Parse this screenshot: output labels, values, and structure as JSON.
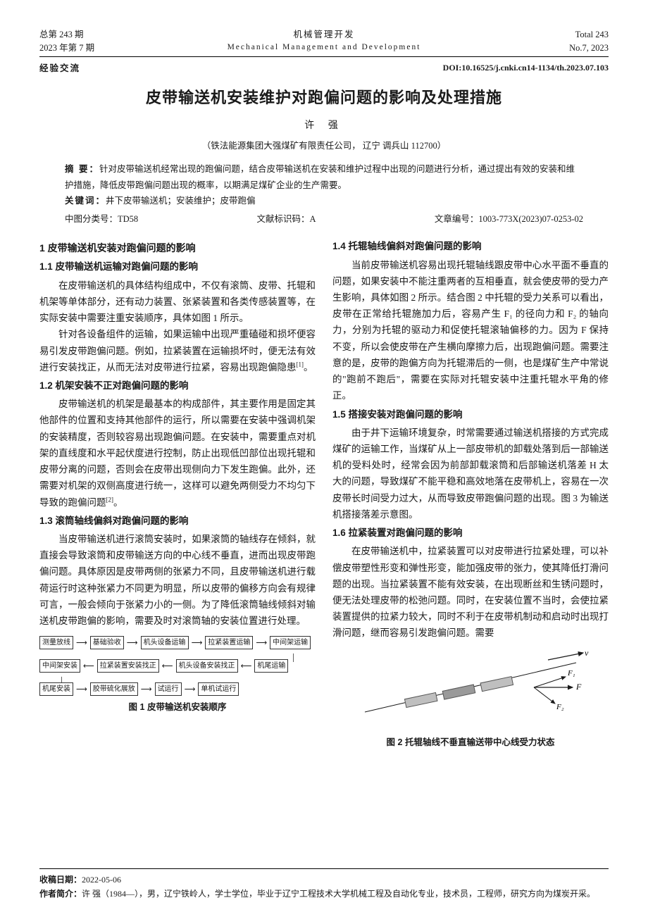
{
  "header": {
    "issue_total_cn": "总第 243 期",
    "issue_date_cn": "2023 年第 7 期",
    "journal_cn": "机械管理开发",
    "journal_en": "Mechanical Management and Development",
    "issue_total_en": "Total 243",
    "issue_date_en": "No.7, 2023"
  },
  "category": "经验交流",
  "doi": "DOI:10.16525/j.cnki.cn14-1134/th.2023.07.103",
  "title": "皮带输送机安装维护对跑偏问题的影响及处理措施",
  "author": "许 强",
  "affiliation": "（铁法能源集团大强煤矿有限责任公司，  辽宁  调兵山  112700）",
  "abstract_label": "摘  要：",
  "abstract": "针对皮带输送机经常出现的跑偏问题，结合皮带输送机在安装和维护过程中出现的问题进行分析，通过提出有效的安装和维护措施，降低皮带跑偏问题出现的概率，以期满足煤矿企业的生产需要。",
  "keywords_label": "关键词：",
  "keywords": "井下皮带输送机；安装维护；皮带跑偏",
  "clc_label": "中图分类号：",
  "clc": "TD58",
  "doc_code_label": "文献标识码：",
  "doc_code": "A",
  "article_id_label": "文章编号：",
  "article_id": "1003-773X(2023)07-0253-02",
  "sections": {
    "s1": "1  皮带输送机安装对跑偏问题的影响",
    "s11": "1.1  皮带输送机运输对跑偏问题的影响",
    "p11a": "在皮带输送机的具体结构组成中，不仅有滚筒、皮带、托辊和机架等单体部分，还有动力装置、张紧装置和各类传感装置等，在实际安装中需要注重安装顺序，具体如图 1 所示。",
    "p11b": "针对各设备组件的运输，如果运输中出现严重磕碰和损坏便容易引发皮带跑偏问题。例如，拉紧装置在运输损坏时，便无法有效进行安装找正，从而无法对皮带进行拉紧，容易出现跑偏隐患",
    "p11b_cite": "[1]",
    "p11b_end": "。",
    "s12": "1.2  机架安装不正对跑偏问题的影响",
    "p12": "皮带输送机的机架是最基本的构成部件，其主要作用是固定其他部件的位置和支持其他部件的运行，所以需要在安装中强调机架的安装精度，否则较容易出现跑偏问题。在安装中，需要重点对机架的直线度和水平起伏度进行控制，防止出现低凹部位出现托辊和皮带分离的问题，否则会在皮带出现侧向力下发生跑偏。此外，还需要对机架的双侧高度进行统一，这样可以避免两侧受力不均匀下导致的跑偏问题",
    "p12_cite": "[2]",
    "p12_end": "。",
    "s13": "1.3  滚筒轴线偏斜对跑偏问题的影响",
    "p13": "当皮带输送机进行滚筒安装时，如果滚筒的轴线存在倾斜，就直接会导致滚筒和皮带输送方向的中心线不垂直，进而出现皮带跑偏问题。具体原因是皮带两侧的张紧力不同，且皮带输送机进行载荷运行时这种张紧力不同更为明显，所以皮带的偏移方向会有规律可言，一般会倾向于张紧力小的一侧。为了降低滚筒轴线倾斜对输送机皮带跑偏的影响，需要及时对滚筒轴的安装位置进行处理。",
    "s14": "1.4  托辊轴线偏斜对跑偏问题的影响",
    "p14": "当前皮带输送机容易出现托辊轴线跟皮带中心水平面不垂直的问题，如果安装中不能注重两者的互相垂直，就会使皮带的受力产生影响，具体如图 2 所示。结合图 2 中托辊的受力关系可以看出，皮带在正常给托辊施加力后，容易产生 F₁ 的径向力和 F₂ 的轴向力，分别为托辊的驱动力和促使托辊滚轴偏移的力。因为 F 保持不变，所以会使皮带在产生横向摩擦力后，出现跑偏问题。需要注意的是，皮带的跑偏方向为托辊滞后的一侧，也是煤矿生产中常说的\"跑前不跑后\"，需要在实际对托辊安装中注重托辊水平角的修正。",
    "s15": "1.5  搭接安装对跑偏问题的影响",
    "p15": "由于井下运输环境复杂，时常需要通过输送机搭接的方式完成煤矿的运输工作，当煤矿从上一部皮带机的卸载处落到后一部输送机的受料处时，经常会因为前部卸载滚筒和后部输送机落差 H 太大的问题，导致煤矿不能平稳和高效地落在皮带机上，容易在一次皮带长时间受力过大，从而导致皮带跑偏问题的出现。图 3 为输送机搭接落差示意图。",
    "s16": "1.6  拉紧装置对跑偏问题的影响",
    "p16": "在皮带输送机中，拉紧装置可以对皮带进行拉紧处理，可以补偿皮带塑性形变和弹性形变，能加强皮带的张力，使其降低打滑问题的出现。当拉紧装置不能有效安装，在出现断丝和生锈问题时，便无法处理皮带的松弛问题。同时，在安装位置不当时，会使拉紧装置提供的拉紧力较大，同时不利于在皮带机制动和启动时出现打滑问题，继而容易引发跑偏问题。需要"
  },
  "fig1": {
    "caption": "图 1  皮带输送机安装顺序",
    "type": "flowchart",
    "box_border": "#333333",
    "font_size": 10,
    "rows": [
      [
        "测量放线",
        "→",
        "基础验收",
        "→",
        "机头设备运输",
        "→",
        "拉紧装置运输",
        "→",
        "中间架运输"
      ],
      [
        "中间架安装",
        "←",
        "拉紧装置安装找正",
        "←",
        "机头设备安装找正",
        "←",
        "机尾运输"
      ],
      [
        "机尾安装",
        "→",
        "胶带硫化展放",
        "→",
        "试运行",
        "→",
        "单机试运行"
      ]
    ]
  },
  "fig2": {
    "caption": "图 2  托辊轴线不垂直输送带中心线受力状态",
    "type": "diagram",
    "belt_color": "#bfbfbf",
    "roller_color": "#6b6b6b",
    "arrow_color": "#1a1a1a",
    "labels": {
      "v": "v",
      "F": "F",
      "F1": "F₁",
      "F2": "F₂"
    }
  },
  "footer": {
    "recv_label": "收稿日期：",
    "recv_date": "2022-05-06",
    "bio_label": "作者简介：",
    "bio": "许  强（1984—），男，辽宁铁岭人，学士学位，毕业于辽宁工程技术大学机械工程及自动化专业，技术员，工程师，研究方向为煤炭开采。"
  },
  "watermark": ""
}
